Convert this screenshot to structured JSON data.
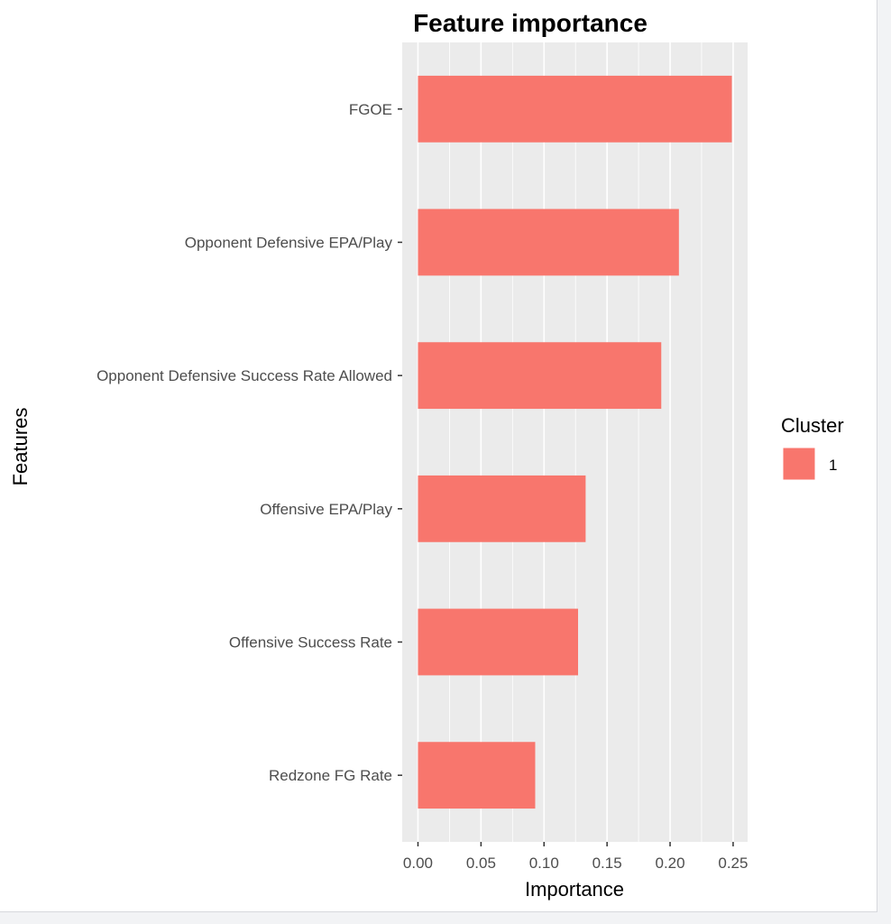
{
  "chart_data": {
    "type": "bar",
    "orientation": "horizontal",
    "title": "Feature importance",
    "xlabel": "Importance",
    "ylabel": "Features",
    "categories": [
      "FGOE",
      "Opponent Defensive EPA/Play",
      "Opponent Defensive Success Rate Allowed",
      "Offensive EPA/Play",
      "Offensive Success Rate",
      "Redzone FG Rate"
    ],
    "series": [
      {
        "name": "1",
        "values": [
          0.249,
          0.207,
          0.193,
          0.133,
          0.127,
          0.093
        ],
        "color": "#F8766D"
      }
    ],
    "xlim": [
      -0.0125,
      0.2615
    ],
    "xticks": [
      0,
      0.05,
      0.1,
      0.15,
      0.2,
      0.25
    ],
    "xtick_labels": [
      "0.00",
      "0.05",
      "0.10",
      "0.15",
      "0.20",
      "0.25"
    ],
    "legend": {
      "title": "Cluster",
      "position": "right"
    },
    "grid": true,
    "panel_background": "#EBEBEB"
  }
}
